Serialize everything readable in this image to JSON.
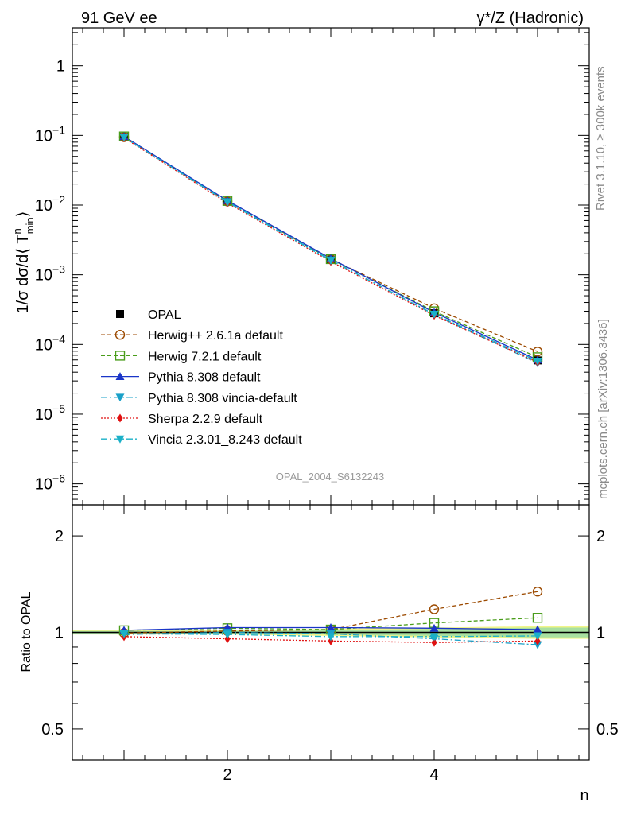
{
  "header": {
    "left_title": "91 GeV ee",
    "right_title": "γ*/Z (Hadronic)"
  },
  "side_labels": {
    "rivet": "Rivet 3.1.10, ≥ 300k events",
    "mcplots": "mcplots.cern.ch [arXiv:1306.3436]"
  },
  "watermark": "OPAL_2004_S6132243",
  "chart_data": [
    {
      "type": "line",
      "panel": "main",
      "yscale": "log",
      "ylabel": "1/σ dσ/d⟨ T^n_min ⟩",
      "ylabel_parts": {
        "lead": "1/σ dσ/d⟨ T",
        "sup": "n",
        "sub": "min",
        "tail": "⟩"
      },
      "xlim": [
        0.5,
        5.5
      ],
      "ylim": [
        5e-07,
        3.5
      ],
      "yticks": [
        {
          "value": 1e-06,
          "base": "10",
          "exp": "−6"
        },
        {
          "value": 1e-05,
          "base": "10",
          "exp": "−5"
        },
        {
          "value": 0.0001,
          "base": "10",
          "exp": "−4"
        },
        {
          "value": 0.001,
          "base": "10",
          "exp": "−3"
        },
        {
          "value": 0.01,
          "base": "10",
          "exp": "−2"
        },
        {
          "value": 0.1,
          "base": "10",
          "exp": "−1"
        },
        {
          "value": 1,
          "base": "1",
          "exp": ""
        }
      ],
      "x": [
        1,
        2,
        3,
        4,
        5
      ],
      "reference": {
        "name": "OPAL",
        "values": [
          0.095,
          0.0112,
          0.00165,
          0.00028,
          5.9e-05
        ]
      },
      "series": [
        {
          "name": "Herwig++ 2.6.1a default",
          "color": "#9c4a00",
          "dash": "5,3",
          "marker": "circle-open",
          "values": [
            0.0945,
            0.0113,
            0.00168,
            0.00033,
            7.9e-05
          ]
        },
        {
          "name": "Herwig 7.2.1 default",
          "color": "#4a9d1a",
          "dash": "5,3",
          "marker": "square-open",
          "values": [
            0.0965,
            0.0115,
            0.00168,
            0.000299,
            6.55e-05
          ]
        },
        {
          "name": "Pythia 8.308 default",
          "color": "#1a35c8",
          "dash": "",
          "marker": "triangle-up",
          "values": [
            0.0965,
            0.0116,
            0.00171,
            0.000288,
            6e-05
          ]
        },
        {
          "name": "Pythia 8.308 vincia-default",
          "color": "#1aa0c8",
          "dash": "8,3,2,3",
          "marker": "triangle-down",
          "values": [
            0.0935,
            0.0112,
            0.00163,
            0.000268,
            5.4e-05
          ]
        },
        {
          "name": "Sherpa 2.2.9 default",
          "color": "#e01010",
          "dash": "2,2",
          "marker": "diamond",
          "values": [
            0.092,
            0.0107,
            0.00155,
            0.000261,
            5.55e-05
          ]
        },
        {
          "name": "Vincia 2.3.01_8.243 default",
          "color": "#1ab0c8",
          "dash": "8,3,2,3",
          "marker": "triangle-down",
          "values": [
            0.094,
            0.011,
            0.0016,
            0.000272,
            5.75e-05
          ]
        }
      ]
    },
    {
      "type": "line",
      "panel": "ratio",
      "yscale": "log",
      "ylabel": "Ratio to OPAL",
      "xlabel": "n",
      "xlim": [
        0.5,
        5.5
      ],
      "ylim": [
        0.4,
        2.5
      ],
      "yticks": [
        0.5,
        1,
        2
      ],
      "ytick_labels": [
        "0.5",
        "1",
        "2"
      ],
      "xticks": [
        2,
        4
      ],
      "xtick_labels": [
        "2",
        "4"
      ],
      "band": {
        "x": [
          1,
          2,
          3,
          4,
          5
        ],
        "inner_lo": [
          0.99,
          0.99,
          0.985,
          0.975,
          0.965
        ],
        "inner_hi": [
          1.01,
          1.01,
          1.015,
          1.025,
          1.035
        ],
        "outer_lo": [
          0.985,
          0.985,
          0.975,
          0.965,
          0.955
        ],
        "outer_hi": [
          1.015,
          1.015,
          1.025,
          1.035,
          1.045
        ]
      },
      "x": [
        1,
        2,
        3,
        4,
        5
      ],
      "series": [
        {
          "name": "Herwig++ 2.6.1a default",
          "values": [
            0.995,
            1.01,
            1.02,
            1.18,
            1.34
          ]
        },
        {
          "name": "Herwig 7.2.1 default",
          "values": [
            1.015,
            1.03,
            1.02,
            1.07,
            1.11
          ]
        },
        {
          "name": "Pythia 8.308 default",
          "values": [
            1.015,
            1.035,
            1.035,
            1.03,
            1.02
          ]
        },
        {
          "name": "Pythia 8.308 vincia-default",
          "values": [
            0.985,
            1.0,
            0.99,
            0.955,
            0.915
          ]
        },
        {
          "name": "Sherpa 2.2.9 default",
          "values": [
            0.97,
            0.955,
            0.94,
            0.93,
            0.94
          ]
        },
        {
          "name": "Vincia 2.3.01_8.243 default",
          "values": [
            0.99,
            0.985,
            0.97,
            0.97,
            0.975
          ]
        }
      ]
    }
  ]
}
